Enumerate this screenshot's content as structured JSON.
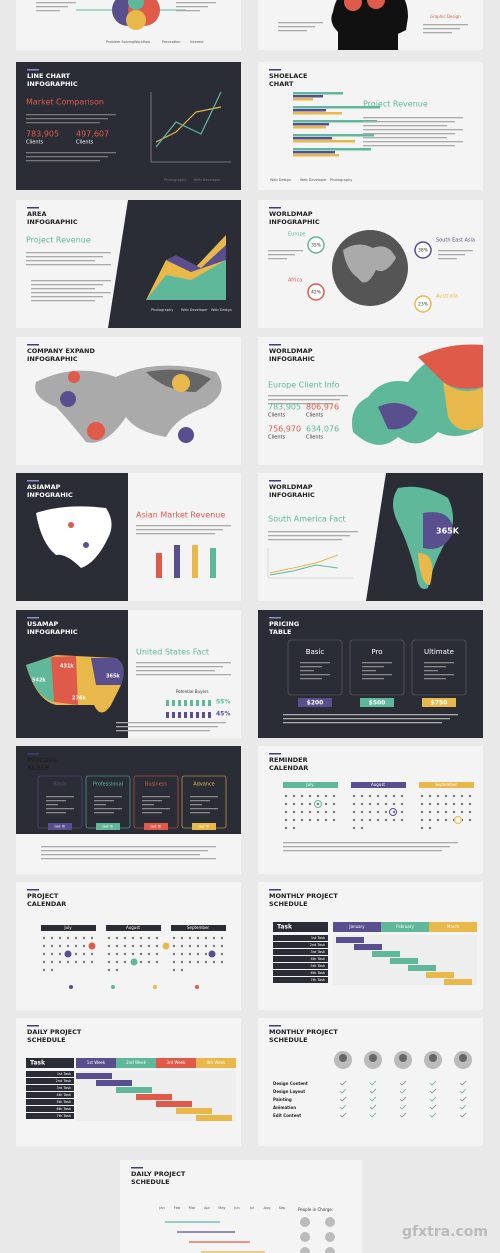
{
  "slides": [
    {
      "labels": [
        "Problem Solving",
        "Workflow",
        "Perception",
        "Interest"
      ]
    },
    {
      "labels": [
        "Graphic Design"
      ]
    },
    {
      "title": [
        "LINE CHART",
        "INFOGRAPHIC"
      ],
      "heading": "Market Comparison",
      "stats": [
        {
          "value": "783,905",
          "label": "Clients"
        },
        {
          "value": "497,607",
          "label": "Clients"
        }
      ],
      "labels": [
        "Photography",
        "Web Developer"
      ]
    },
    {
      "title": [
        "SHOELACE",
        "CHART"
      ],
      "heading": "Project Revenue",
      "labels": [
        "Web Design",
        "Web Developer",
        "Photography"
      ]
    },
    {
      "title": [
        "AREA",
        "INFOGRAPHIC"
      ],
      "heading": "Project Revenue",
      "labels": [
        "Photography",
        "Web Developer",
        "Web Design"
      ]
    },
    {
      "title": [
        "WORLDMAP",
        "INFOGRAPHIC"
      ],
      "labels": [
        {
          "name": "Europe",
          "value": "35%"
        },
        {
          "name": "Africa",
          "value": "42%"
        },
        {
          "name": "South East Asia",
          "value": "38%"
        },
        {
          "name": "Australia",
          "value": "23%"
        }
      ]
    },
    {
      "title": [
        "COMPANY EXPAND",
        "INFOGRAPHIC"
      ]
    },
    {
      "title": [
        "WORLDMAP",
        "INFOGRAHIC"
      ],
      "heading": "Europe Client Info",
      "stats": [
        {
          "value": "783,905",
          "label": "Clients"
        },
        {
          "value": "806,976",
          "label": "Clients"
        },
        {
          "value": "756,970",
          "label": "Clients"
        },
        {
          "value": "634,076",
          "label": "Clients"
        }
      ]
    },
    {
      "title": [
        "ASIAMAP",
        "INFOGRAHIC"
      ],
      "heading": "Asian Market Revenue"
    },
    {
      "title": [
        "WORLDMAP",
        "INFOGRAHIC"
      ],
      "heading": "South America Fact",
      "labels": [
        "365K"
      ]
    },
    {
      "title": [
        "USAMAP",
        "INFOGRAPHIC"
      ],
      "heading": "United States Fact",
      "labels": [
        "542k",
        "431k",
        "276k",
        "365k",
        "Potential Buyers",
        "55%",
        "45%"
      ]
    },
    {
      "title": [
        "PRICING",
        "TABLE"
      ],
      "plans": [
        {
          "name": "Basic",
          "price": "$200"
        },
        {
          "name": "Pro",
          "price": "$500"
        },
        {
          "name": "Ultimate",
          "price": "$750"
        }
      ]
    },
    {
      "title": [
        "PRICING",
        "TABLE"
      ],
      "plans": [
        {
          "name": "Basic",
          "button": "Get It!"
        },
        {
          "name": "Professional",
          "button": "Get It!"
        },
        {
          "name": "Business",
          "button": "Get It!"
        },
        {
          "name": "Advance",
          "button": "Get It!"
        }
      ]
    },
    {
      "title": [
        "REMINDER",
        "CALENDAR"
      ],
      "months": [
        "July",
        "August",
        "September"
      ]
    },
    {
      "title": [
        "PROJECT",
        "CALENDAR"
      ],
      "months": [
        "July",
        "August",
        "September"
      ]
    },
    {
      "title": [
        "MONTHLY PROJECT",
        "SCHEDULE"
      ],
      "header": "Task",
      "months": [
        "January",
        "February",
        "March"
      ],
      "tasks": [
        "1st Task",
        "2nd Task",
        "3rd Task",
        "4th Task",
        "5th Task",
        "6th Task",
        "7th Task"
      ]
    },
    {
      "title": [
        "DAILY PROJECT",
        "SCHEDULE"
      ],
      "header": "Task",
      "weeks": [
        "1st Week",
        "2nd Week",
        "3rd Week",
        "4th Week"
      ],
      "tasks": [
        "1st Task",
        "2nd Task",
        "3rd Task",
        "4th Task",
        "5th Task",
        "6th Task",
        "7th Task"
      ]
    },
    {
      "title": [
        "MONTHLY PROJECT",
        "SCHEDULE"
      ],
      "rows": [
        "Design Content",
        "Design Layout",
        "Painting",
        "Animation",
        "Edit Content"
      ]
    },
    {
      "title": [
        "DAILY PROJECT",
        "SCHEDULE"
      ],
      "people": "People in Charge:",
      "months": [
        "Jan",
        "Feb",
        "Mar",
        "Apr",
        "May",
        "Jun",
        "Jul",
        "Aug",
        "Sep"
      ]
    }
  ],
  "watermark": "gfxtra.com"
}
